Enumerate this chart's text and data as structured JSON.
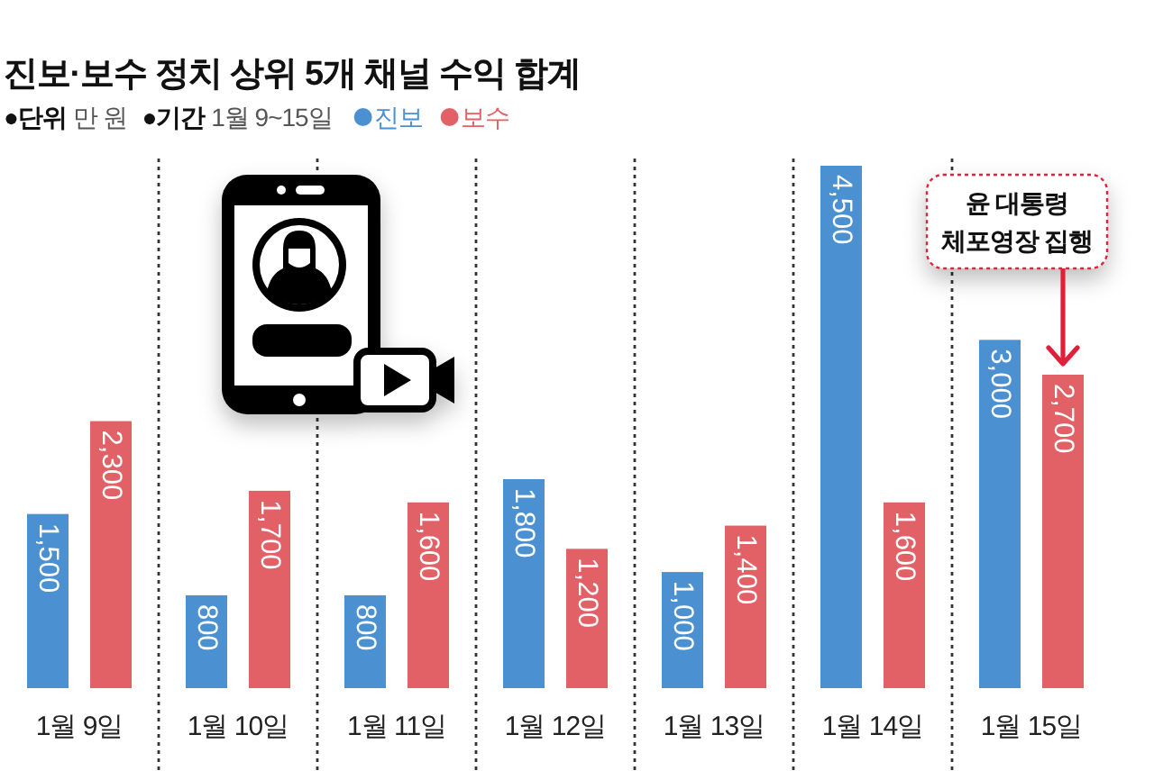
{
  "chart_data": {
    "type": "bar",
    "title": "진보·보수 정치 상위 5개 채널 수익 합계",
    "subtitle": "●단위 만 원 ●기간 1월 9~15일",
    "categories": [
      "1월 9일",
      "1월 10일",
      "1월 11일",
      "1월 12일",
      "1월 13일",
      "1월 14일",
      "1월 15일"
    ],
    "series": [
      {
        "name": "진보",
        "color": "#4b91d1",
        "values": [
          1500,
          800,
          800,
          1800,
          1000,
          4500,
          3000
        ],
        "value_labels": [
          "1,500",
          "800",
          "800",
          "1,800",
          "1,000",
          "4,500",
          "3,000"
        ]
      },
      {
        "name": "보수",
        "color": "#e26167",
        "values": [
          2300,
          1700,
          1600,
          1200,
          1400,
          1600,
          2700
        ],
        "value_labels": [
          "2,300",
          "1,700",
          "1,600",
          "1,200",
          "1,400",
          "1,600",
          "2,700"
        ]
      }
    ],
    "legend": "top left",
    "grid": "x",
    "annotations": [
      "윤 대통령\n체포영장 집행"
    ]
  }
}
